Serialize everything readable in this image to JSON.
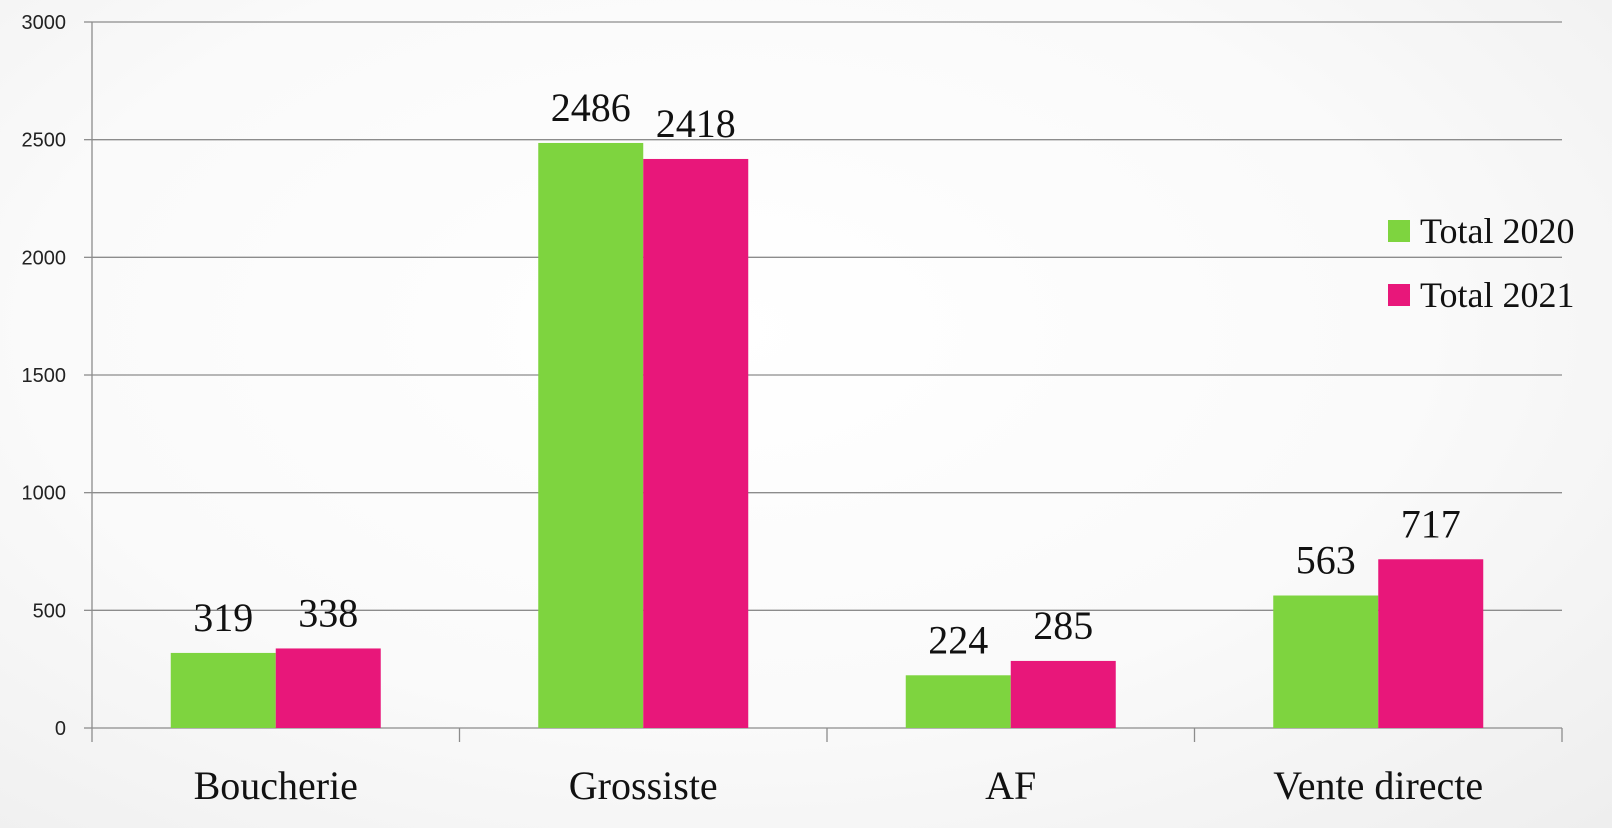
{
  "chart_data": {
    "type": "bar",
    "title": "",
    "xlabel": "",
    "ylabel": "",
    "categories": [
      "Boucherie",
      "Grossiste",
      "AF",
      "Vente directe"
    ],
    "series": [
      {
        "name": "Total 2020",
        "color": "#7ed43f",
        "values": [
          319,
          2486,
          224,
          563
        ]
      },
      {
        "name": "Total 2021",
        "color": "#e8177a",
        "values": [
          338,
          2418,
          285,
          717
        ]
      }
    ],
    "ylim": [
      0,
      3000
    ],
    "yticks": [
      0,
      500,
      1000,
      1500,
      2000,
      2500,
      3000
    ],
    "grid": true,
    "legend_position": "right"
  }
}
